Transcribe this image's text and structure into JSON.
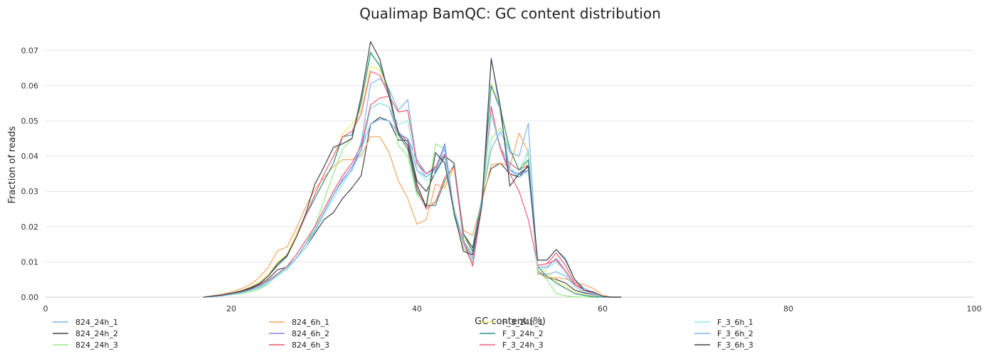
{
  "chart_data": {
    "type": "line",
    "title": "Qualimap BamQC: GC content distribution",
    "xlabel": "GC content (%)",
    "ylabel": "Fraction of reads",
    "xlim": [
      0,
      100
    ],
    "ylim": [
      0,
      0.075
    ],
    "xticks": [
      0,
      20,
      40,
      60,
      80,
      100
    ],
    "xtick_labels": [
      "0",
      "20",
      "40",
      "60",
      "80",
      "100"
    ],
    "yticks": [
      0,
      0.01,
      0.02,
      0.03,
      0.04,
      0.05,
      0.06,
      0.07
    ],
    "ytick_labels": [
      "0.00",
      "0.01",
      "0.02",
      "0.03",
      "0.04",
      "0.05",
      "0.06",
      "0.07"
    ],
    "grid": "horizontal",
    "legend_position": "bottom",
    "x": [
      17,
      18,
      19,
      20,
      21,
      22,
      23,
      24,
      25,
      26,
      27,
      28,
      29,
      30,
      31,
      32,
      33,
      34,
      35,
      36,
      37,
      38,
      39,
      40,
      41,
      42,
      43,
      44,
      45,
      46,
      47,
      48,
      49,
      50,
      51,
      52,
      53,
      54,
      55,
      56,
      57,
      58,
      59,
      60,
      61,
      62
    ],
    "series": [
      {
        "name": "824_24h_1",
        "color": "#7cb5ec",
        "values": [
          0,
          0.0002,
          0.0004,
          0.0008,
          0.0012,
          0.0018,
          0.0026,
          0.004,
          0.0063,
          0.0078,
          0.011,
          0.014,
          0.019,
          0.024,
          0.029,
          0.033,
          0.036,
          0.044,
          0.0605,
          0.062,
          0.059,
          0.053,
          0.056,
          0.038,
          0.034,
          0.0365,
          0.043,
          0.024,
          0.016,
          0.012,
          0.028,
          0.042,
          0.047,
          0.041,
          0.04,
          0.0493,
          0.0065,
          0.0065,
          0.0072,
          0.006,
          0.003,
          0.0015,
          0.0008,
          0.0002,
          0,
          0
        ]
      },
      {
        "name": "824_24h_2",
        "color": "#434348",
        "values": [
          0,
          0.0002,
          0.0004,
          0.001,
          0.0015,
          0.0023,
          0.0035,
          0.0052,
          0.0078,
          0.0085,
          0.011,
          0.014,
          0.018,
          0.022,
          0.024,
          0.028,
          0.031,
          0.0345,
          0.049,
          0.051,
          0.05,
          0.0445,
          0.0445,
          0.033,
          0.03,
          0.0355,
          0.04,
          0.038,
          0.018,
          0.014,
          0.028,
          0.0365,
          0.038,
          0.035,
          0.034,
          0.0375,
          0.0075,
          0.0055,
          0.005,
          0.004,
          0.002,
          0.0012,
          0.0006,
          0.0001,
          0,
          0
        ]
      },
      {
        "name": "824_24h_3",
        "color": "#90ed7d",
        "values": [
          0,
          0.0002,
          0.0004,
          0.0007,
          0.001,
          0.0015,
          0.0022,
          0.0038,
          0.0063,
          0.0078,
          0.011,
          0.015,
          0.02,
          0.0275,
          0.035,
          0.042,
          0.045,
          0.055,
          0.069,
          0.066,
          0.058,
          0.043,
          0.04,
          0.029,
          0.026,
          0.0435,
          0.042,
          0.023,
          0.014,
          0.01,
          0.027,
          0.045,
          0.048,
          0.042,
          0.036,
          0.041,
          0.0075,
          0.005,
          0.001,
          0.0004,
          0.0001,
          0,
          0,
          0,
          0,
          0
        ]
      },
      {
        "name": "824_6h_1",
        "color": "#f7a35c",
        "values": [
          0,
          0.0004,
          0.0008,
          0.0015,
          0.0023,
          0.0035,
          0.0055,
          0.0085,
          0.0132,
          0.0142,
          0.0195,
          0.0255,
          0.0305,
          0.034,
          0.037,
          0.039,
          0.039,
          0.04,
          0.0455,
          0.0455,
          0.041,
          0.033,
          0.028,
          0.0207,
          0.022,
          0.032,
          0.031,
          0.037,
          0.019,
          0.0175,
          0.027,
          0.0375,
          0.038,
          0.037,
          0.0465,
          0.041,
          0.007,
          0.0055,
          0.0055,
          0.0052,
          0.0042,
          0.0035,
          0.0025,
          0.0005,
          0,
          0
        ]
      },
      {
        "name": "824_6h_2",
        "color": "#8085e9",
        "values": [
          0,
          0.0002,
          0.0004,
          0.0008,
          0.0013,
          0.002,
          0.003,
          0.0045,
          0.0065,
          0.0085,
          0.011,
          0.015,
          0.019,
          0.024,
          0.029,
          0.0335,
          0.037,
          0.042,
          0.0535,
          0.055,
          0.054,
          0.046,
          0.045,
          0.039,
          0.035,
          0.0365,
          0.0435,
          0.024,
          0.016,
          0.0105,
          0.027,
          0.052,
          0.042,
          0.036,
          0.035,
          0.036,
          0.0085,
          0.0085,
          0.011,
          0.0075,
          0.003,
          0.0015,
          0.0008,
          0.0002,
          0,
          0
        ]
      },
      {
        "name": "824_6h_3",
        "color": "#e4576b",
        "values": [
          0,
          0.0002,
          0.0004,
          0.0008,
          0.0013,
          0.0021,
          0.0031,
          0.0047,
          0.0067,
          0.0087,
          0.012,
          0.016,
          0.02,
          0.025,
          0.03,
          0.0345,
          0.038,
          0.043,
          0.0545,
          0.0565,
          0.057,
          0.0525,
          0.053,
          0.038,
          0.035,
          0.037,
          0.0405,
          0.024,
          0.0155,
          0.009,
          0.0265,
          0.054,
          0.042,
          0.038,
          0.036,
          0.0375,
          0.009,
          0.0095,
          0.0125,
          0.009,
          0.004,
          0.002,
          0.001,
          0.0002,
          0,
          0
        ]
      },
      {
        "name": "F_3_24h_1",
        "color": "#f5e663",
        "values": [
          0,
          0.0003,
          0.0006,
          0.0012,
          0.0018,
          0.0028,
          0.0042,
          0.0065,
          0.01,
          0.012,
          0.018,
          0.023,
          0.028,
          0.033,
          0.038,
          0.0465,
          0.049,
          0.053,
          0.0655,
          0.0645,
          0.058,
          0.046,
          0.042,
          0.03,
          0.026,
          0.027,
          0.032,
          0.037,
          0.0175,
          0.0125,
          0.028,
          0.0605,
          0.054,
          0.042,
          0.036,
          0.0385,
          0.0085,
          0.007,
          0.0045,
          0.003,
          0.0015,
          0.0006,
          0.0002,
          0,
          0,
          0
        ]
      },
      {
        "name": "F_3_24h_2",
        "color": "#2b908f",
        "values": [
          0,
          0.0003,
          0.0006,
          0.0011,
          0.0017,
          0.0026,
          0.0038,
          0.006,
          0.009,
          0.0115,
          0.017,
          0.023,
          0.028,
          0.033,
          0.038,
          0.0455,
          0.046,
          0.0555,
          0.0695,
          0.0655,
          0.0585,
          0.046,
          0.042,
          0.03,
          0.026,
          0.026,
          0.033,
          0.0375,
          0.018,
          0.013,
          0.028,
          0.06,
          0.053,
          0.042,
          0.036,
          0.039,
          0.0085,
          0.006,
          0.004,
          0.0025,
          0.001,
          0.0005,
          0.0001,
          0,
          0,
          0
        ]
      },
      {
        "name": "F_3_24h_3",
        "color": "#f15c80",
        "values": [
          0,
          0.0003,
          0.0006,
          0.0011,
          0.0017,
          0.0026,
          0.0038,
          0.006,
          0.0095,
          0.0118,
          0.017,
          0.023,
          0.029,
          0.035,
          0.04,
          0.0455,
          0.047,
          0.052,
          0.064,
          0.063,
          0.057,
          0.047,
          0.044,
          0.031,
          0.025,
          0.027,
          0.034,
          0.037,
          0.0165,
          0.0088,
          0.026,
          0.054,
          0.042,
          0.035,
          0.03,
          0.022,
          0.009,
          0.0095,
          0.0105,
          0.0075,
          0.0035,
          0.002,
          0.001,
          0.0002,
          0,
          0
        ]
      },
      {
        "name": "F_3_6h_1",
        "color": "#91e8e1",
        "values": [
          0,
          0.0002,
          0.0004,
          0.0008,
          0.0012,
          0.0018,
          0.0027,
          0.004,
          0.006,
          0.008,
          0.011,
          0.014,
          0.0185,
          0.0235,
          0.028,
          0.032,
          0.0365,
          0.041,
          0.0535,
          0.055,
          0.054,
          0.049,
          0.05,
          0.036,
          0.033,
          0.035,
          0.0395,
          0.0255,
          0.016,
          0.0105,
          0.0275,
          0.052,
          0.043,
          0.037,
          0.034,
          0.042,
          0.008,
          0.008,
          0.01,
          0.007,
          0.003,
          0.0015,
          0.0007,
          0.0001,
          0,
          0
        ]
      },
      {
        "name": "F_3_6h_2",
        "color": "#7cb5ec",
        "values": [
          0,
          0.0002,
          0.0004,
          0.0008,
          0.0013,
          0.002,
          0.003,
          0.0045,
          0.0065,
          0.0085,
          0.011,
          0.015,
          0.019,
          0.024,
          0.029,
          0.033,
          0.036,
          0.042,
          0.049,
          0.0505,
          0.05,
          0.0465,
          0.045,
          0.036,
          0.034,
          0.036,
          0.042,
          0.024,
          0.016,
          0.011,
          0.027,
          0.068,
          0.052,
          0.036,
          0.034,
          0.036,
          0.0105,
          0.0105,
          0.0135,
          0.011,
          0.005,
          0.0025,
          0.0012,
          0.0002,
          0,
          0
        ]
      },
      {
        "name": "F_3_6h_3",
        "color": "#434348",
        "values": [
          0,
          0.0003,
          0.0006,
          0.0011,
          0.0017,
          0.0026,
          0.0038,
          0.006,
          0.0095,
          0.0118,
          0.017,
          0.0235,
          0.032,
          0.037,
          0.0425,
          0.0435,
          0.045,
          0.057,
          0.0725,
          0.0675,
          0.057,
          0.0465,
          0.043,
          0.032,
          0.0255,
          0.041,
          0.038,
          0.024,
          0.013,
          0.012,
          0.026,
          0.0675,
          0.054,
          0.0315,
          0.035,
          0.037,
          0.0105,
          0.0105,
          0.0135,
          0.0105,
          0.005,
          0.002,
          0.0015,
          0.0002,
          0,
          0
        ]
      }
    ]
  }
}
